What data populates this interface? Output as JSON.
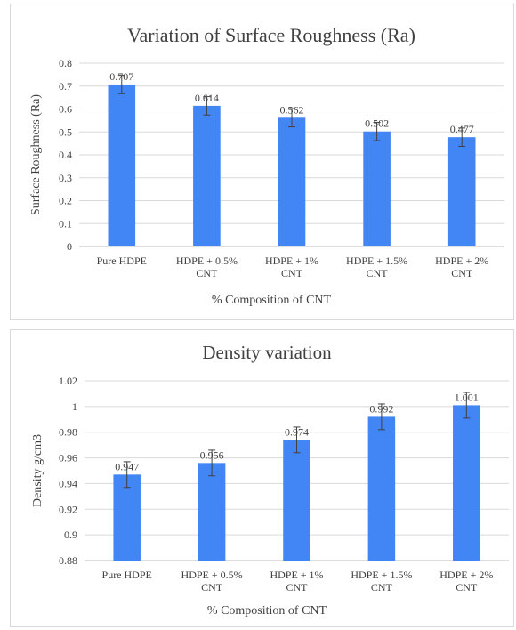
{
  "chart_data": [
    {
      "type": "bar",
      "title": "Variation of Surface Roughness (Ra)",
      "xlabel": "% Composition of CNT",
      "ylabel": "Surface Roughness (Ra)",
      "categories": [
        [
          "Pure HDPE"
        ],
        [
          "HDPE + 0.5%",
          "CNT"
        ],
        [
          "HDPE + 1%",
          "CNT"
        ],
        [
          "HDPE + 1.5%",
          "CNT"
        ],
        [
          "HDPE + 2%",
          "CNT"
        ]
      ],
      "values": [
        0.707,
        0.614,
        0.562,
        0.502,
        0.477
      ],
      "data_labels": [
        "0.707",
        "0.614",
        "0.562",
        "0.502",
        "0.477"
      ],
      "error": [
        0.04,
        0.04,
        0.04,
        0.04,
        0.04
      ],
      "ylim": [
        0,
        0.8
      ],
      "yticks": [
        "0",
        "0.1",
        "0.2",
        "0.3",
        "0.4",
        "0.5",
        "0.6",
        "0.7",
        "0.8"
      ],
      "ytick_values": [
        0,
        0.1,
        0.2,
        0.3,
        0.4,
        0.5,
        0.6,
        0.7,
        0.8
      ],
      "grid": true,
      "bar_color": "#4285f4"
    },
    {
      "type": "bar",
      "title": "Density variation",
      "xlabel": "% Composition of CNT",
      "ylabel": "Density g/cm3",
      "categories": [
        [
          "Pure HDPE"
        ],
        [
          "HDPE + 0.5%",
          "CNT"
        ],
        [
          "HDPE + 1%",
          "CNT"
        ],
        [
          "HDPE + 1.5%",
          "CNT"
        ],
        [
          "HDPE + 2%",
          "CNT"
        ]
      ],
      "values": [
        0.947,
        0.956,
        0.974,
        0.992,
        1.001
      ],
      "data_labels": [
        "0.947",
        "0.956",
        "0.974",
        "0.992",
        "1.001"
      ],
      "error": [
        0.01,
        0.01,
        0.01,
        0.01,
        0.01
      ],
      "ylim": [
        0.88,
        1.02
      ],
      "yticks": [
        "0.88",
        "0.9",
        "0.92",
        "0.94",
        "0.96",
        "0.98",
        "1",
        "1.02"
      ],
      "ytick_values": [
        0.88,
        0.9,
        0.92,
        0.94,
        0.96,
        0.98,
        1.0,
        1.02
      ],
      "grid": true,
      "bar_color": "#4285f4"
    }
  ]
}
